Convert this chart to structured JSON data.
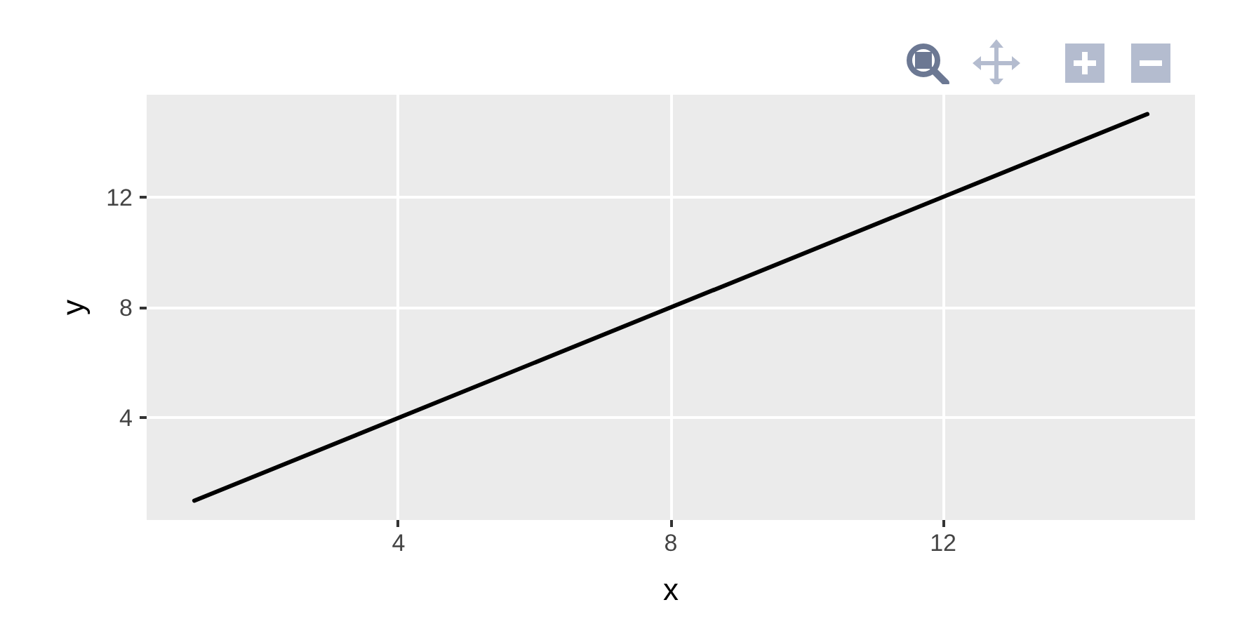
{
  "chart_data": {
    "type": "line",
    "xlabel": "x",
    "ylabel": "y",
    "x": [
      1,
      15
    ],
    "series": [
      {
        "color": "#000000",
        "values": [
          1,
          15
        ]
      }
    ],
    "xlim": [
      0.3,
      15.7
    ],
    "ylim": [
      0.3,
      15.7
    ],
    "xticks": [
      4,
      8,
      12
    ],
    "yticks": [
      4,
      8,
      12
    ],
    "grid": true
  }
}
